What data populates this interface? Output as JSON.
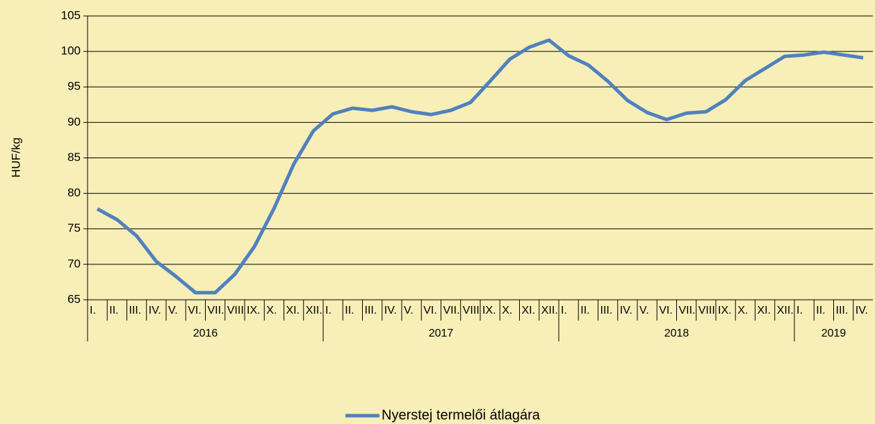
{
  "chart_data": {
    "type": "line",
    "y_label": "HUF/kg",
    "groups": [
      {
        "label": "2016",
        "months": [
          "I.",
          "II.",
          "III.",
          "IV.",
          "V.",
          "VI.",
          "VII.",
          "VIII.",
          "IX.",
          "X.",
          "XI.",
          "XII."
        ]
      },
      {
        "label": "2017",
        "months": [
          "I.",
          "II.",
          "III.",
          "IV.",
          "V.",
          "VI.",
          "VII.",
          "VIII.",
          "IX.",
          "X.",
          "XI.",
          "XII."
        ]
      },
      {
        "label": "2018",
        "months": [
          "I.",
          "II.",
          "III.",
          "IV.",
          "V.",
          "VI.",
          "VII.",
          "VIII.",
          "IX.",
          "X.",
          "XI.",
          "XII."
        ]
      },
      {
        "label": "2019",
        "months": [
          "I.",
          "II.",
          "III.",
          "IV."
        ]
      }
    ],
    "series": [
      {
        "name": "Nyerstej termelői átlagára",
        "color": "#4f81bd",
        "values": [
          77.8,
          76.3,
          74.0,
          70.4,
          68.3,
          66.0,
          66.0,
          68.6,
          72.5,
          77.9,
          84.1,
          88.8,
          91.2,
          92.0,
          91.7,
          92.2,
          91.5,
          91.1,
          91.7,
          92.8,
          95.8,
          98.9,
          100.6,
          101.6,
          99.4,
          98.1,
          95.8,
          93.1,
          91.4,
          90.4,
          91.3,
          91.5,
          93.2,
          95.9,
          97.6,
          99.3,
          99.5,
          99.9,
          99.5,
          99.1
        ]
      }
    ],
    "ylim": [
      65,
      105
    ],
    "yticks": [
      65,
      70,
      75,
      80,
      85,
      90,
      95,
      100,
      105
    ],
    "grid": true,
    "legend": "bottom"
  }
}
